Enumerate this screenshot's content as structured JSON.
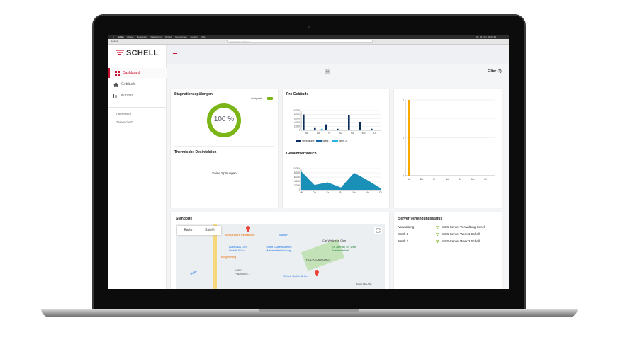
{
  "menubar": {
    "items": [
      "Safari",
      "Ablage",
      "Bearbeiten",
      "Darstellung",
      "Verlauf",
      "Lesezeichen",
      "Fenster",
      "Hilfe"
    ],
    "clock": "Mo. 14. Jan. 11:01:44"
  },
  "browser": {
    "url": "https://app.schell.eu/"
  },
  "brand": {
    "name": "SCHELL",
    "accent": "#c8102e"
  },
  "sidebar": {
    "items": [
      {
        "label": "Dashboard",
        "icon": "dashboard-icon",
        "active": true
      },
      {
        "label": "Gebäude",
        "icon": "home-icon"
      },
      {
        "label": "Kunden",
        "icon": "contact-card-icon"
      }
    ],
    "links": [
      "Impressum",
      "Datenschutz"
    ]
  },
  "filter": {
    "label": "Filter (3)"
  },
  "stagnation": {
    "title": "Stagnationsspülungen",
    "legend": "erfolgreich",
    "value": "100 %",
    "percent": 100,
    "color": "#7cb518"
  },
  "thermal": {
    "title": "Thermische Desinfektion",
    "empty": "Keine Spülungen"
  },
  "chart_data": [
    {
      "type": "bar",
      "title": "Pro Gebäude",
      "categories": [
        "Mi",
        "Do",
        "Fr",
        "Sa",
        "So",
        "Mo",
        "Di"
      ],
      "ylim": [
        0,
        10000
      ],
      "yticks": [
        "0",
        "2.000l",
        "4.000l",
        "6.000l",
        "8.000l",
        "10.000l"
      ],
      "legend": "bottom",
      "series": [
        {
          "name": "Verwaltung",
          "color": "#0d2f5e",
          "values": [
            8000,
            1500,
            3000,
            800,
            7700,
            4300,
            800
          ]
        },
        {
          "name": "Werk 1",
          "color": "#1565a8",
          "values": [
            0,
            0,
            0,
            0,
            0,
            0,
            0
          ]
        },
        {
          "name": "Werk 2",
          "color": "#29b6e6",
          "values": [
            400,
            800,
            400,
            100,
            100,
            200,
            100
          ]
        }
      ]
    },
    {
      "type": "area",
      "title": "Gesamtverbrauch",
      "categories": [
        "Mi",
        "Do",
        "Fr",
        "Sa",
        "So",
        "Mo",
        "Di"
      ],
      "ylim": [
        0,
        10000
      ],
      "yticks": [
        "0",
        "2.000l",
        "4.000l",
        "6.000l",
        "8.000l",
        "10.000l"
      ],
      "color": "#1a8fb8",
      "values": [
        8700,
        2300,
        3500,
        1100,
        8000,
        4600,
        800
      ]
    },
    {
      "type": "bar",
      "categories": [
        "Mi",
        "Do",
        "Fr",
        "Sa",
        "So",
        "Mo",
        "Di"
      ],
      "ylim": [
        0,
        2
      ],
      "yticks": [
        "0",
        "1",
        "2"
      ],
      "color": "#f9a800",
      "values": [
        2,
        0,
        0,
        0,
        0,
        0,
        0
      ]
    }
  ],
  "map": {
    "title": "Standorte",
    "tabs": [
      "Karte",
      "Satellit"
    ],
    "labels": [
      {
        "t": "McDonald's Restaurant",
        "c": "#e8710a"
      },
      {
        "t": "Buchen",
        "c": "#1a73e8"
      },
      {
        "t": "Car Wellness Olpe",
        "c": "#333"
      },
      {
        "t": "Autohaus Löhr GmbH & Co.",
        "c": "#1a73e8"
      },
      {
        "t": "Roleff Outletstore für Motorradbekleidung",
        "c": "#1a73e8"
      },
      {
        "t": "SV Arena / SV Dahl Friedrichsthal",
        "c": "#188038"
      },
      {
        "t": "Burger King",
        "c": "#e8710a"
      },
      {
        "t": "POLYGONVATRO",
        "c": "#333"
      },
      {
        "t": "WIRO Präzisions...",
        "c": "#555"
      },
      {
        "t": "Schell GmbH & Co.",
        "c": "#1a73e8"
      },
      {
        "t": "Bigge",
        "c": "#1a73e8"
      },
      {
        "t": "Kreuz Olpe-Süd",
        "c": "#333"
      }
    ]
  },
  "server": {
    "title": "Server-Verbindungsstatus",
    "rows": [
      {
        "name": "Verwaltung",
        "server": "SWS-Server Verwaltung Schell"
      },
      {
        "name": "Werk 1",
        "server": "SWS-Server Werk 1 Schell"
      },
      {
        "name": "Werk 2",
        "server": "SWS-Server Werk 2 Schell"
      }
    ],
    "color": "#7cb518"
  }
}
